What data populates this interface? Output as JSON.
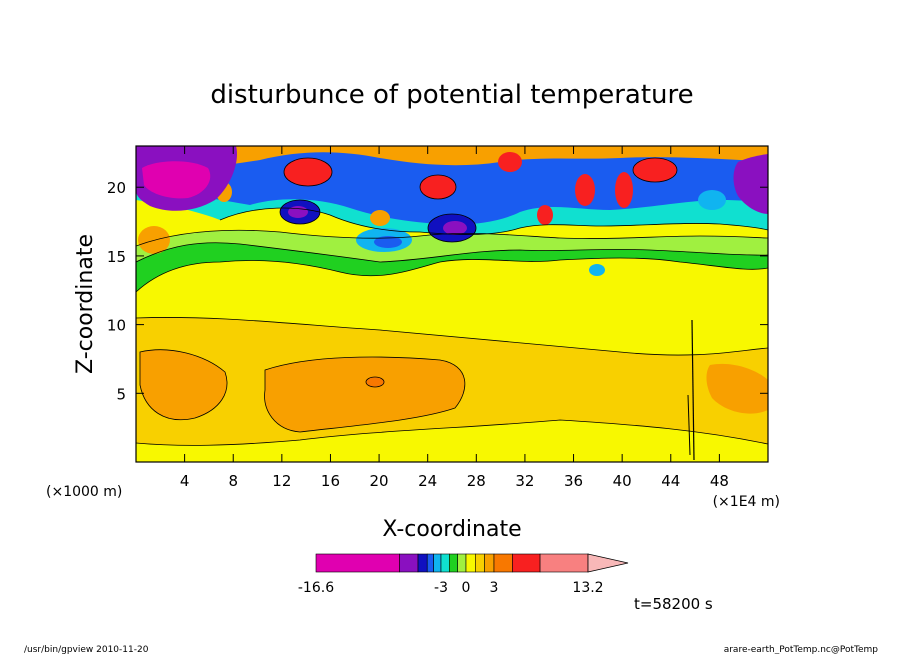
{
  "chart_data": {
    "type": "heatmap",
    "title": "disturbunce of potential temperature",
    "xlabel": "X-coordinate",
    "ylabel": "Z-coordinate",
    "x_unit_left": "(×1000 m)",
    "x_unit_right": "(×1E4 m)",
    "xlim": [
      0,
      52
    ],
    "ylim": [
      0,
      23
    ],
    "xticks": [
      4,
      8,
      12,
      16,
      20,
      24,
      28,
      32,
      36,
      40,
      44,
      48
    ],
    "yticks": [
      5,
      10,
      15,
      20
    ],
    "colorbar": {
      "tick_labels": [
        "-16.6",
        "-3",
        "0",
        "3",
        "13.2"
      ],
      "tick_values": [
        -16.6,
        -3,
        0,
        3,
        13.2
      ],
      "colors": [
        "#e000b0",
        "#8a10c0",
        "#1010c0",
        "#1a5cf0",
        "#10b4f0",
        "#10e0d0",
        "#20d020",
        "#a0f040",
        "#f8f800",
        "#f8d000",
        "#f8a000",
        "#f87800",
        "#f82020",
        "#f88080",
        "#f8b8b8"
      ]
    },
    "time_label": "t=58200 s",
    "footer_left": "/usr/bin/gpview   2010-11-20",
    "footer_right": "arare-earth_PotTemp.nc@PotTemp"
  }
}
